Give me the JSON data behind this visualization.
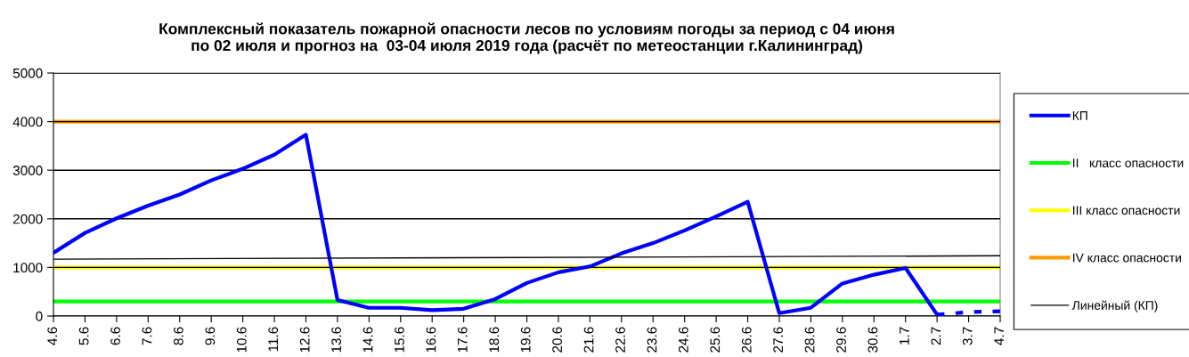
{
  "chart_data": {
    "type": "line",
    "title": "Комплексный показатель пожарной опасности лесов по условиям погоды за период с 04 июня\nпо 02 июля и прогноз на  03-04 июля 2019 года (расчёт по метеостанции г.Калининград)",
    "categories": [
      "4.6",
      "5.6",
      "6.6",
      "7.6",
      "8.6",
      "9.6",
      "10.6",
      "11.6",
      "12.6",
      "13.6",
      "14.6",
      "15.6",
      "16.6",
      "17.6",
      "18.6",
      "19.6",
      "20.6",
      "21.6",
      "22.6",
      "23.6",
      "24.6",
      "25.6",
      "26.6",
      "27.6",
      "28.6",
      "29.6",
      "30.6",
      "1.7",
      "2.7",
      "3.7",
      "4.7"
    ],
    "series": [
      {
        "name": "КП",
        "color": "#0000ff",
        "line_style": "solid",
        "values": [
          1300,
          1710,
          2010,
          2270,
          2500,
          2790,
          3030,
          3320,
          3730,
          330,
          170,
          170,
          120,
          150,
          350,
          680,
          900,
          1020,
          1290,
          1500,
          1760,
          2050,
          2350,
          60,
          170,
          670,
          850,
          990,
          30,
          null,
          null
        ]
      },
      {
        "color": "#0000ff",
        "line_style": "dashed",
        "values": [
          null,
          null,
          null,
          null,
          null,
          null,
          null,
          null,
          null,
          null,
          null,
          null,
          null,
          null,
          null,
          null,
          null,
          null,
          null,
          null,
          null,
          null,
          null,
          null,
          null,
          null,
          null,
          null,
          30,
          80,
          100
        ]
      },
      {
        "name": "II   класс опасности",
        "color": "#00ff00",
        "line_style": "solid",
        "values": [
          300,
          300,
          300,
          300,
          300,
          300,
          300,
          300,
          300,
          300,
          300,
          300,
          300,
          300,
          300,
          300,
          300,
          300,
          300,
          300,
          300,
          300,
          300,
          300,
          300,
          300,
          300,
          300,
          300,
          300,
          300
        ]
      },
      {
        "name": "III класс опасности",
        "color": "#ffff00",
        "line_style": "solid",
        "values": [
          1000,
          1000,
          1000,
          1000,
          1000,
          1000,
          1000,
          1000,
          1000,
          1000,
          1000,
          1000,
          1000,
          1000,
          1000,
          1000,
          1000,
          1000,
          1000,
          1000,
          1000,
          1000,
          1000,
          1000,
          1000,
          1000,
          1000,
          1000,
          1000,
          1000,
          1000
        ]
      },
      {
        "name": "IV класс опасности",
        "color": "#ff9900",
        "line_style": "solid",
        "values": [
          4000,
          4000,
          4000,
          4000,
          4000,
          4000,
          4000,
          4000,
          4000,
          4000,
          4000,
          4000,
          4000,
          4000,
          4000,
          4000,
          4000,
          4000,
          4000,
          4000,
          4000,
          4000,
          4000,
          4000,
          4000,
          4000,
          4000,
          4000,
          4000,
          4000,
          4000
        ]
      },
      {
        "name": "Линейный (КП)",
        "color": "#000000",
        "line_style": "solid",
        "values": [
          1170,
          null,
          null,
          null,
          null,
          null,
          null,
          null,
          null,
          null,
          null,
          null,
          null,
          null,
          null,
          null,
          null,
          null,
          null,
          null,
          null,
          null,
          null,
          null,
          null,
          null,
          null,
          null,
          null,
          null,
          1240
        ]
      }
    ],
    "ylim": [
      0,
      5000
    ],
    "yticks": [
      0,
      1000,
      2000,
      3000,
      4000,
      5000
    ],
    "grid": "y",
    "legend": "right",
    "marker": "none"
  }
}
